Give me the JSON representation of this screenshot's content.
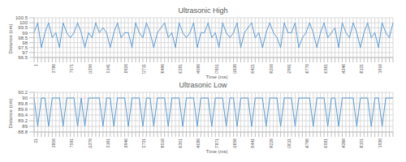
{
  "chart_data": [
    {
      "type": "line",
      "title": "Ultrasonic High",
      "x_label": "Time (ms)",
      "y_label": "Distance (cm)",
      "color": "#5b9bd5",
      "grid": true,
      "ylim": [
        96.5,
        100.5
      ],
      "yticks": [
        96.5,
        97,
        97.5,
        98,
        98.5,
        99,
        99.5,
        100,
        100.5
      ],
      "categories": [
        "1",
        null,
        null,
        null,
        null,
        "3786",
        null,
        null,
        null,
        null,
        "7571",
        null,
        null,
        null,
        null,
        "11356",
        null,
        null,
        null,
        null,
        "15141",
        null,
        null,
        null,
        null,
        "18926",
        null,
        null,
        null,
        null,
        "22711",
        null,
        null,
        null,
        null,
        "26496",
        null,
        null,
        null,
        null,
        "30281",
        null,
        null,
        null,
        null,
        "34066",
        null,
        null,
        null,
        null,
        "37851",
        null,
        null,
        null,
        null,
        "41636",
        null,
        null,
        null,
        null,
        "45421",
        null,
        null,
        null,
        null,
        "49206",
        null,
        null,
        null,
        null,
        "52991",
        null,
        null,
        null,
        null,
        "56776",
        null,
        null,
        null,
        null,
        "60561",
        null,
        null,
        null,
        null,
        "64346",
        null,
        null,
        null,
        null,
        "68131",
        null,
        null,
        null,
        null,
        "71916",
        null,
        null,
        null,
        null
      ],
      "values": [
        99,
        100,
        97.5,
        99,
        100,
        98.5,
        99,
        97.5,
        100,
        99,
        98.5,
        99,
        100,
        99,
        97.5,
        99,
        98.5,
        100,
        99,
        99.5,
        99,
        97.5,
        99,
        100,
        98.5,
        99,
        99,
        97.5,
        100,
        99,
        98.5,
        100,
        99,
        97.5,
        99,
        99.5,
        100,
        98.5,
        99,
        97.5,
        100,
        99,
        98.5,
        99,
        100,
        97.5,
        99,
        99,
        100,
        98.5,
        99,
        97.5,
        100,
        99,
        98.5,
        99,
        100,
        97.5,
        99,
        99.5,
        100,
        98.5,
        99,
        97.5,
        99,
        100,
        99,
        98.5,
        97.5,
        100,
        99,
        99,
        100,
        97.5,
        98.5,
        99,
        100,
        99,
        97.5,
        99,
        100,
        98.5,
        99,
        99.5,
        97.5,
        100,
        99,
        98.5,
        100,
        99,
        97.5,
        99,
        100,
        98.5,
        99,
        97.5,
        100,
        99,
        98.5,
        100
      ]
    },
    {
      "type": "line",
      "title": "Ultrasonic Low",
      "x_label": "Time (ms)",
      "y_label": "Distance (cm)",
      "color": "#5b9bd5",
      "grid": true,
      "ylim": [
        88.8,
        90.2
      ],
      "yticks": [
        88.8,
        89,
        89.2,
        89.4,
        89.6,
        89.8,
        90,
        90.2
      ],
      "categories": [
        "21",
        null,
        null,
        null,
        null,
        "3806",
        null,
        null,
        null,
        null,
        "7591",
        null,
        null,
        null,
        null,
        "11376",
        null,
        null,
        null,
        null,
        "15161",
        null,
        null,
        null,
        null,
        "18946",
        null,
        null,
        null,
        null,
        "22731",
        null,
        null,
        null,
        null,
        "26516",
        null,
        null,
        null,
        null,
        "30301",
        null,
        null,
        null,
        null,
        "34086",
        null,
        null,
        null,
        null,
        "37871",
        null,
        null,
        null,
        null,
        "41656",
        null,
        null,
        null,
        null,
        "45441",
        null,
        null,
        null,
        null,
        "49226",
        null,
        null,
        null,
        null,
        "53011",
        null,
        null,
        null,
        null,
        "56796",
        null,
        null,
        null,
        null,
        "60581",
        null,
        null,
        null,
        null,
        "64366",
        null,
        null,
        null,
        null,
        "68151",
        null,
        null,
        null,
        null,
        "71936",
        null,
        null,
        null,
        null
      ],
      "values": [
        90,
        89,
        90,
        90,
        89,
        90,
        90,
        90,
        89,
        90,
        90,
        90,
        89,
        90,
        89,
        90,
        90,
        90,
        90,
        89,
        90,
        90,
        89,
        90,
        90,
        90,
        89,
        90,
        90,
        90,
        89,
        90,
        90,
        89,
        90,
        90,
        90,
        89,
        90,
        90,
        90,
        89,
        90,
        90,
        90,
        89,
        90,
        90,
        90,
        89,
        90,
        90,
        90,
        89,
        90,
        90,
        89,
        90,
        90,
        90,
        89,
        90,
        90,
        90,
        89,
        90,
        90,
        90,
        89,
        90,
        90,
        90,
        89,
        90,
        90,
        90,
        90,
        89,
        90,
        90,
        90,
        89,
        90,
        90,
        89,
        90,
        90,
        90,
        90,
        89,
        90,
        90,
        90,
        89,
        90,
        90,
        89,
        90,
        90,
        90
      ]
    }
  ]
}
